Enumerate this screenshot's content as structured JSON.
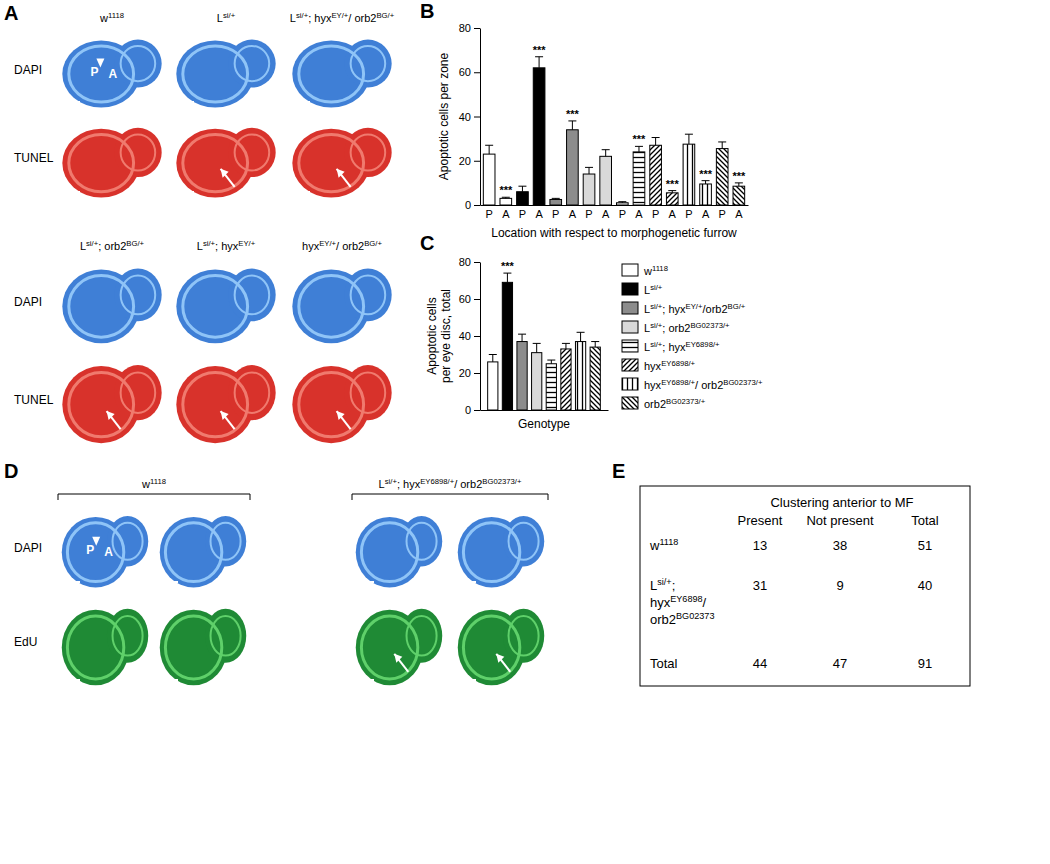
{
  "chart_data": [
    {
      "type": "bar",
      "y_label": "Apoptotic cells per zone",
      "x_label": "Location with respect to morphogenetic furrow",
      "categories": [
        "P",
        "A",
        "P",
        "A",
        "P",
        "A",
        "P",
        "A",
        "P",
        "A",
        "P",
        "A",
        "P",
        "A",
        "P",
        "A"
      ],
      "values": [
        23,
        3,
        6,
        62,
        2.5,
        34,
        14,
        22,
        1,
        24,
        27,
        5.5,
        27.5,
        9.5,
        25.5,
        8.5
      ],
      "errors": [
        4,
        0.5,
        2.5,
        5,
        0.5,
        4,
        3,
        3,
        0.5,
        2.5,
        3.5,
        1,
        4.5,
        1.5,
        3,
        1.5
      ],
      "significance": [
        null,
        "***",
        null,
        "***",
        null,
        "***",
        null,
        null,
        null,
        "***",
        null,
        "***",
        null,
        "***",
        null,
        "***"
      ],
      "colors": [
        "#ffffff",
        "#ffffff",
        "#000000",
        "#000000",
        "#8c8c8c",
        "#8c8c8c",
        "#d9d9d9",
        "#d9d9d9",
        "#ffffff",
        "#ffffff",
        "#ffffff",
        "#ffffff",
        "#ffffff",
        "#ffffff",
        "#ffffff",
        "#ffffff"
      ],
      "ylim": [
        0,
        80
      ],
      "yticks": [
        0,
        20,
        40,
        60,
        80
      ]
    },
    {
      "type": "bar",
      "y_label": [
        "Apoptotic cells",
        "per eye disc, total"
      ],
      "x_label": "Genotype",
      "categories": [
        null
      ],
      "legend": "right",
      "series": [
        {
          "name": "w1118",
          "color": "#ffffff",
          "values": [
            26
          ],
          "errors": [
            4
          ],
          "significance": [
            null
          ]
        },
        {
          "name": "Lsi/+",
          "color": "#000000",
          "values": [
            69
          ],
          "errors": [
            5
          ],
          "significance": [
            "***"
          ]
        },
        {
          "name": "Lsi/+; hyxEY/+/orb2BG/+",
          "color": "#8c8c8c",
          "values": [
            37
          ],
          "errors": [
            4
          ],
          "significance": [
            null
          ]
        },
        {
          "name": "Lsi/+; orb2BG02373/+",
          "color": "#d9d9d9",
          "values": [
            31
          ],
          "errors": [
            5
          ],
          "significance": [
            null
          ]
        },
        {
          "name": "Lsi/+; hyxEY6898/+",
          "color": "#ffffff",
          "values": [
            25
          ],
          "errors": [
            2
          ],
          "significance": [
            null
          ]
        },
        {
          "name": "hyxEY6898/+",
          "color": "#ffffff",
          "values": [
            33
          ],
          "errors": [
            3
          ],
          "significance": [
            null
          ]
        },
        {
          "name": "hyxEY6898/+/ orb2BG02373/+",
          "color": "#ffffff",
          "values": [
            37
          ],
          "errors": [
            5
          ],
          "significance": [
            null
          ]
        },
        {
          "name": "orb2BG02373/+",
          "color": "#ffffff",
          "values": [
            34
          ],
          "errors": [
            3
          ],
          "significance": [
            null
          ]
        }
      ],
      "ylim": [
        0,
        80
      ],
      "yticks": [
        0,
        20,
        40,
        60,
        80
      ]
    }
  ],
  "figure": {
    "panel_letters": [
      "A",
      "B",
      "C",
      "D",
      "E"
    ],
    "panel_a": {
      "top_columns": [
        "w1118",
        "Lsi/+",
        "Lsi/+; hyxEY/+/ orb2BG/+"
      ],
      "bottom_columns": [
        "Lsi/+; orb2BG/+",
        "Lsi/+; hyxEY/+",
        "hyxEY/+/ orb2BG/+"
      ],
      "row_labels": [
        "DAPI",
        "TUNEL"
      ],
      "axis_marks": [
        "P",
        "A"
      ]
    },
    "panel_d": {
      "groups": [
        "w1118",
        "Lsi/+; hyxEY6898/+/ orb2BG02373/+"
      ],
      "row_labels": [
        "DAPI",
        "EdU"
      ],
      "axis_marks": [
        "P",
        "A"
      ]
    },
    "panel_e": {
      "header": "Clustering anterior to MF",
      "columns": [
        "Present",
        "Not present",
        "Total"
      ],
      "rows": [
        {
          "label": [
            "w1118"
          ],
          "values": [
            13,
            38,
            51
          ]
        },
        {
          "label": [
            "Lsi/+;",
            "hyxEY6898/",
            "orb2BG02373"
          ],
          "values": [
            31,
            9,
            40
          ]
        },
        {
          "label": [
            "Total"
          ],
          "values": [
            44,
            47,
            91
          ]
        }
      ]
    }
  }
}
